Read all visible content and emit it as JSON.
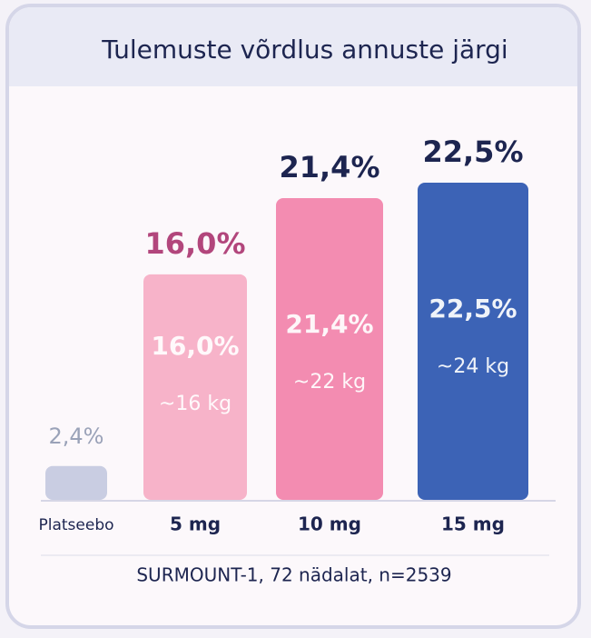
{
  "chart_data": {
    "type": "bar",
    "title": "Tulemuste võrdlus annuste järgi",
    "categories": [
      "Platseebo",
      "5 mg",
      "10 mg",
      "15 mg"
    ],
    "values": [
      2.4,
      16.0,
      21.4,
      22.5
    ],
    "value_labels": [
      "2,4%",
      "16,0%",
      "21,4%",
      "22,5%"
    ],
    "weight_labels": [
      null,
      "~16 kg",
      "~22 kg",
      "~24 kg"
    ],
    "colors": [
      "#c9cde2",
      "#f7b3c9",
      "#f38cb1",
      "#3c63b6"
    ],
    "label_colors": [
      "#9aa2b8",
      "#b2467c",
      "#1d2550",
      "#1d2550"
    ],
    "footnote": "SURMOUNT-1, 72 nädalat, n=2539"
  }
}
